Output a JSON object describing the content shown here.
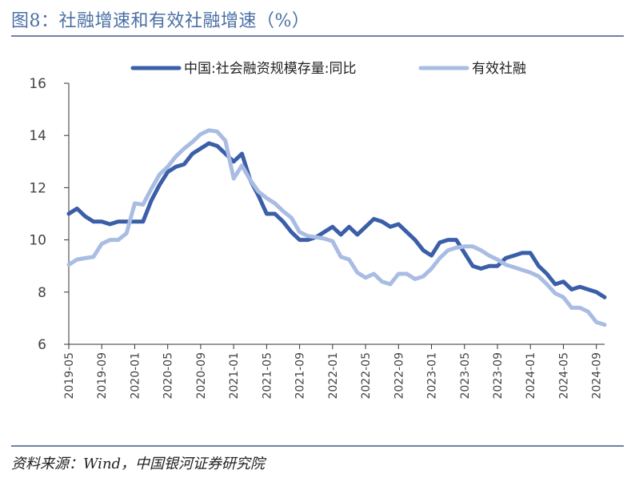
{
  "figure": {
    "title": "图8：社融增速和有效社融增速（%）",
    "source": "资料来源：Wind，中国银河证券研究院"
  },
  "colors": {
    "title": "#4a6fa5",
    "rule": "#6f83a6",
    "series_1": "#3a5fa8",
    "series_2": "#a9bce3",
    "axis": "#333333"
  },
  "chart_data": {
    "type": "line",
    "title": "",
    "xlabel": "",
    "ylabel": "",
    "ylim": [
      6,
      16
    ],
    "yticks": [
      6,
      8,
      10,
      12,
      14,
      16
    ],
    "grid": false,
    "legend_position": "top",
    "x_tick_labels": [
      "2019-05",
      "2019-09",
      "2020-01",
      "2020-05",
      "2020-09",
      "2021-01",
      "2021-05",
      "2021-09",
      "2022-01",
      "2022-05",
      "2022-09",
      "2023-01",
      "2023-05",
      "2023-09",
      "2024-01",
      "2024-05",
      "2024-09"
    ],
    "x": [
      "2019-05",
      "2019-06",
      "2019-07",
      "2019-08",
      "2019-09",
      "2019-10",
      "2019-11",
      "2019-12",
      "2020-01",
      "2020-02",
      "2020-03",
      "2020-04",
      "2020-05",
      "2020-06",
      "2020-07",
      "2020-08",
      "2020-09",
      "2020-10",
      "2020-11",
      "2020-12",
      "2021-01",
      "2021-02",
      "2021-03",
      "2021-04",
      "2021-05",
      "2021-06",
      "2021-07",
      "2021-08",
      "2021-09",
      "2021-10",
      "2021-11",
      "2021-12",
      "2022-01",
      "2022-02",
      "2022-03",
      "2022-04",
      "2022-05",
      "2022-06",
      "2022-07",
      "2022-08",
      "2022-09",
      "2022-10",
      "2022-11",
      "2022-12",
      "2023-01",
      "2023-02",
      "2023-03",
      "2023-04",
      "2023-05",
      "2023-06",
      "2023-07",
      "2023-08",
      "2023-09",
      "2023-10",
      "2023-11",
      "2023-12",
      "2024-01",
      "2024-02",
      "2024-03",
      "2024-04",
      "2024-05",
      "2024-06",
      "2024-07",
      "2024-08",
      "2024-09",
      "2024-10"
    ],
    "series": [
      {
        "name": "中国:社会融资规模存量:同比",
        "color": "#3a5fa8",
        "values": [
          11.0,
          11.2,
          10.9,
          10.7,
          10.7,
          10.6,
          10.7,
          10.7,
          10.7,
          10.7,
          11.5,
          12.1,
          12.6,
          12.8,
          12.9,
          13.3,
          13.5,
          13.7,
          13.6,
          13.3,
          13.0,
          13.3,
          12.3,
          11.7,
          11.0,
          11.0,
          10.7,
          10.3,
          10.0,
          10.0,
          10.1,
          10.3,
          10.5,
          10.2,
          10.5,
          10.2,
          10.5,
          10.8,
          10.7,
          10.5,
          10.6,
          10.3,
          10.0,
          9.6,
          9.4,
          9.9,
          10.0,
          10.0,
          9.5,
          9.0,
          8.9,
          9.0,
          9.0,
          9.3,
          9.4,
          9.5,
          9.5,
          9.0,
          8.7,
          8.3,
          8.4,
          8.1,
          8.2,
          8.1,
          8.0,
          7.8
        ]
      },
      {
        "name": "有效社融",
        "color": "#a9bce3",
        "values": [
          9.05,
          9.25,
          9.3,
          9.35,
          9.85,
          10.0,
          10.0,
          10.25,
          11.4,
          11.35,
          11.95,
          12.5,
          12.8,
          13.2,
          13.5,
          13.75,
          14.05,
          14.2,
          14.15,
          13.8,
          12.35,
          12.85,
          12.3,
          11.85,
          11.6,
          11.4,
          11.1,
          10.85,
          10.3,
          10.15,
          10.1,
          10.05,
          9.95,
          9.35,
          9.25,
          8.75,
          8.55,
          8.7,
          8.4,
          8.3,
          8.7,
          8.7,
          8.5,
          8.6,
          8.9,
          9.3,
          9.6,
          9.7,
          9.75,
          9.75,
          9.6,
          9.4,
          9.25,
          9.05,
          8.95,
          8.85,
          8.75,
          8.6,
          8.3,
          7.95,
          7.8,
          7.4,
          7.4,
          7.25,
          6.85,
          6.75
        ]
      }
    ]
  }
}
